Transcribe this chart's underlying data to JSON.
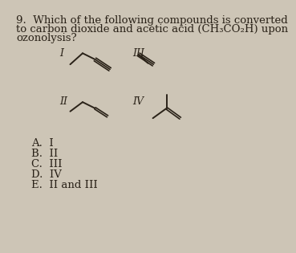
{
  "background_color": "#cdc5b6",
  "question_line1": "9.  Which of the following compounds is converted",
  "question_line2": "to carbon dioxide and acetic acid (CH₃CO₂H) upon",
  "question_line3": "ozonolysis?",
  "label_I": "I",
  "label_II": "II",
  "label_III": "III",
  "label_IV": "IV",
  "choices": [
    "A.  I",
    "B.  II",
    "C.  III",
    "D.  IV",
    "E.  II and III"
  ],
  "text_color": "#2a2218",
  "line_color": "#2a2218",
  "font_size_q": 9.5,
  "font_size_labels": 9,
  "font_size_choices": 9.5
}
